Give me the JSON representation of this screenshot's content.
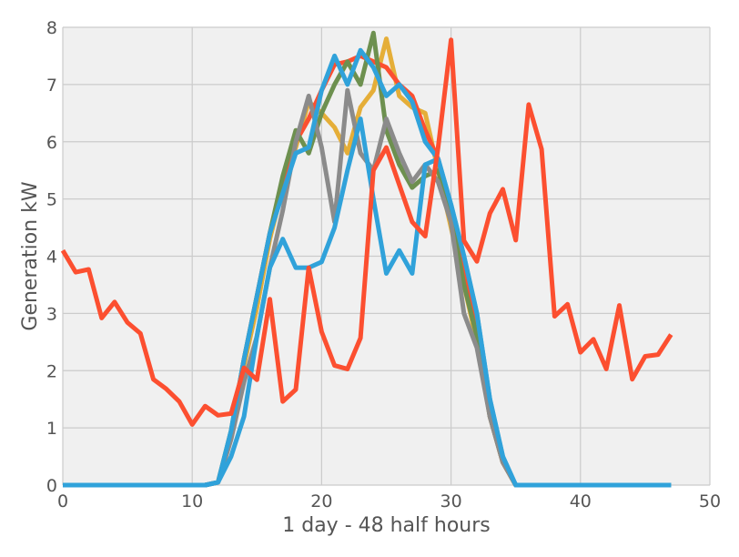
{
  "chart_data": {
    "type": "line",
    "title": "",
    "xlabel": "1 day - 48 half hours",
    "ylabel": "Generation kW",
    "xlim": [
      0,
      50
    ],
    "ylim": [
      0,
      8
    ],
    "xticks": [
      0,
      10,
      20,
      30,
      40,
      50
    ],
    "yticks": [
      0,
      1,
      2,
      3,
      4,
      5,
      6,
      7,
      8
    ],
    "grid": true,
    "background": "#f0f0f0",
    "grid_color": "#cbcbcb",
    "legend": "none",
    "x": [
      0,
      1,
      2,
      3,
      4,
      5,
      6,
      7,
      8,
      9,
      10,
      11,
      12,
      13,
      14,
      15,
      16,
      17,
      18,
      19,
      20,
      21,
      22,
      23,
      24,
      25,
      26,
      27,
      28,
      29,
      30,
      31,
      32,
      33,
      34,
      35,
      36,
      37,
      38,
      39,
      40,
      41,
      42,
      43,
      44,
      45,
      46,
      47
    ],
    "series": [
      {
        "color": "#fc4f30",
        "values": [
          4.1,
          3.72,
          3.77,
          2.92,
          3.2,
          2.84,
          2.65,
          1.85,
          1.68,
          1.46,
          1.06,
          1.38,
          1.22,
          1.25,
          2.05,
          1.84,
          3.25,
          1.46,
          1.67,
          3.8,
          2.68,
          2.09,
          2.03,
          2.57,
          5.5,
          5.9,
          5.25,
          4.6,
          4.35,
          5.9,
          7.78,
          4.27,
          3.91,
          4.75,
          5.17,
          4.28,
          6.65,
          5.87,
          2.95,
          3.16,
          2.32,
          2.55,
          2.03,
          3.14,
          1.85,
          2.25,
          2.28,
          2.63
        ]
      },
      {
        "color": "#e5ae38",
        "values": [
          0,
          0,
          0,
          0,
          0,
          0,
          0,
          0,
          0,
          0,
          0,
          0,
          0.05,
          0.9,
          2.1,
          3.1,
          4.3,
          5.2,
          5.9,
          6.7,
          6.5,
          6.25,
          5.8,
          6.6,
          6.9,
          7.8,
          6.8,
          6.6,
          6.5,
          5.5,
          4.5,
          3.5,
          2.5,
          1.2,
          0.4,
          0,
          0,
          0,
          0,
          0,
          0,
          0,
          0,
          0,
          0,
          0,
          0,
          0
        ]
      },
      {
        "color": "#fc4f30",
        "values": [
          0,
          0,
          0,
          0,
          0,
          0,
          0,
          0,
          0,
          0,
          0,
          0,
          0.05,
          0.9,
          2.2,
          3.3,
          4.4,
          5.3,
          6.0,
          6.4,
          6.9,
          7.35,
          7.4,
          7.5,
          7.4,
          7.3,
          7.0,
          6.8,
          6.2,
          5.7,
          4.8,
          3.8,
          2.7,
          1.2,
          0.4,
          0,
          0,
          0,
          0,
          0,
          0,
          0,
          0,
          0,
          0,
          0,
          0,
          0
        ]
      },
      {
        "color": "#6d904f",
        "values": [
          0,
          0,
          0,
          0,
          0,
          0,
          0,
          0,
          0,
          0,
          0,
          0,
          0.05,
          0.95,
          2.2,
          3.3,
          4.4,
          5.4,
          6.2,
          5.8,
          6.5,
          7.0,
          7.4,
          7.0,
          7.9,
          6.2,
          5.6,
          5.2,
          5.4,
          5.5,
          4.7,
          3.5,
          2.6,
          1.2,
          0.4,
          0,
          0,
          0,
          0,
          0,
          0,
          0,
          0,
          0,
          0,
          0,
          0,
          0
        ]
      },
      {
        "color": "#8b8b8b",
        "values": [
          0,
          0,
          0,
          0,
          0,
          0,
          0,
          0,
          0,
          0,
          0,
          0,
          0.05,
          0.8,
          1.8,
          2.6,
          3.8,
          4.8,
          6.0,
          6.8,
          5.9,
          4.6,
          6.9,
          5.8,
          5.5,
          6.4,
          5.8,
          5.3,
          5.6,
          5.3,
          4.6,
          3.0,
          2.4,
          1.2,
          0.4,
          0,
          0,
          0,
          0,
          0,
          0,
          0,
          0,
          0,
          0,
          0,
          0,
          0
        ]
      },
      {
        "color": "#30a2da",
        "values": [
          0,
          0,
          0,
          0,
          0,
          0,
          0,
          0,
          0,
          0,
          0,
          0,
          0.05,
          0.5,
          1.2,
          2.6,
          3.8,
          4.3,
          3.8,
          3.8,
          3.9,
          4.5,
          5.5,
          6.4,
          5.0,
          3.7,
          4.1,
          3.7,
          5.6,
          5.7,
          4.9,
          4.0,
          3.0,
          1.5,
          0.5,
          0,
          0,
          0,
          0,
          0,
          0,
          0,
          0,
          0,
          0,
          0,
          0,
          0
        ]
      },
      {
        "color": "#30a2da",
        "values": [
          0,
          0,
          0,
          0,
          0,
          0,
          0,
          0,
          0,
          0,
          0,
          0,
          0.05,
          0.95,
          2.2,
          3.3,
          4.4,
          5.1,
          5.8,
          5.9,
          6.9,
          7.5,
          7.0,
          7.6,
          7.3,
          6.8,
          7.0,
          6.7,
          6.0,
          5.7,
          4.9,
          4.0,
          3.0,
          1.5,
          0.5,
          0,
          0,
          0,
          0,
          0,
          0,
          0,
          0,
          0,
          0,
          0,
          0,
          0
        ]
      }
    ]
  }
}
